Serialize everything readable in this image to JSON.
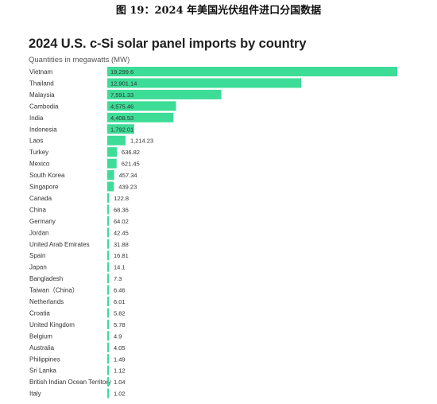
{
  "figure_caption": "图 19：2024 年美国光伏组件进口分国数据",
  "chart_data": {
    "type": "bar",
    "orientation": "horizontal",
    "title": "2024 U.S. c-Si solar panel imports by country",
    "subtitle": "Quantities in megawatts (MW)",
    "categories": [
      "Vietnam",
      "Thailand",
      "Malaysia",
      "Cambodia",
      "India",
      "Indonesia",
      "Laos",
      "Turkey",
      "Mexico",
      "South Korea",
      "Singapore",
      "Canada",
      "China",
      "Germany",
      "Jordan",
      "United Arab Emirates",
      "Spain",
      "Japan",
      "Bangladesh",
      "Taiwan（China）",
      "Netherlands",
      "Croatia",
      "United Kingdom",
      "Belgium",
      "Australia",
      "Philippines",
      "Sri Lanka",
      "British Indian Ocean Territory",
      "Italy"
    ],
    "values": [
      19299.6,
      12901.14,
      7591.33,
      4575.46,
      4408.53,
      1792.01,
      1214.23,
      636.82,
      621.45,
      457.34,
      439.23,
      122.8,
      68.36,
      64.02,
      42.45,
      31.88,
      16.81,
      14.1,
      7.3,
      6.46,
      6.01,
      5.82,
      5.78,
      4.9,
      4.05,
      1.49,
      1.12,
      1.04,
      1.02
    ],
    "value_labels": [
      "19,299.6",
      "12,901.14",
      "7,591.33",
      "4,575.46",
      "4,408.53",
      "1,792.01",
      "1,214.23",
      "636.82",
      "621.45",
      "457.34",
      "439.23",
      "122.8",
      "68.36",
      "64.02",
      "42.45",
      "31.88",
      "16.81",
      "14.1",
      "7.3",
      "6.46",
      "6.01",
      "5.82",
      "5.78",
      "4.9",
      "4.05",
      "1.49",
      "1.12",
      "1.04",
      "1.02"
    ],
    "xlim": [
      0,
      19299.6
    ],
    "grid": false,
    "bar_color": "#3ddc97"
  }
}
